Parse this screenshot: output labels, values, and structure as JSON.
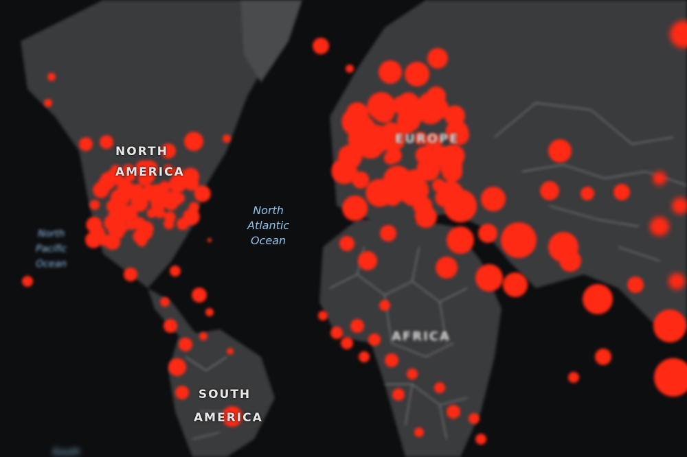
{
  "map": {
    "marker_color": "#ff2a14",
    "land_color": "#3a3b3d",
    "ocean_color": "#0d0e10",
    "continent_labels": {
      "north_america": "NORTH AMERICA",
      "europe": "EUROPE",
      "africa": "AFRICA",
      "south_america": "SOUTH AMERICA"
    },
    "ocean_labels": {
      "north_atlantic": [
        "North",
        "Atlantic",
        "Ocean"
      ],
      "north_pacific": [
        "North",
        "Pacific",
        "Ocean"
      ],
      "south": "South"
    }
  }
}
